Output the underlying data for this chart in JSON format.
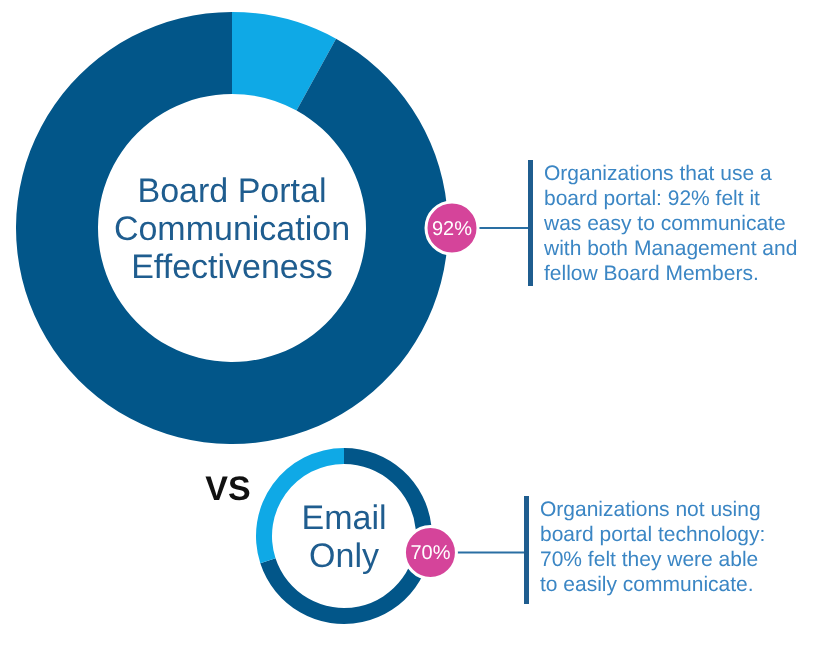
{
  "chart_data": [
    {
      "type": "donut",
      "title": "Board Portal Communication Effectiveness",
      "categories": [
        null,
        null
      ],
      "values": [
        8,
        92
      ],
      "colors": [
        "#0fa9e6",
        "#025689"
      ],
      "value_labels": [
        null,
        "92%"
      ],
      "annotations": [
        "Organizations that use a board portal: 92% felt it was easy to communicate with both Management and fellow Board Members."
      ]
    },
    {
      "type": "donut",
      "title": "Email Only",
      "categories": [
        null,
        null
      ],
      "values": [
        70,
        30
      ],
      "colors": [
        "#025689",
        "#0fa9e6"
      ],
      "value_labels": [
        "70%",
        null
      ],
      "annotations": [
        "VS",
        "Organizations not using board portal technology: 70% felt they were able to easily communicate."
      ]
    }
  ]
}
